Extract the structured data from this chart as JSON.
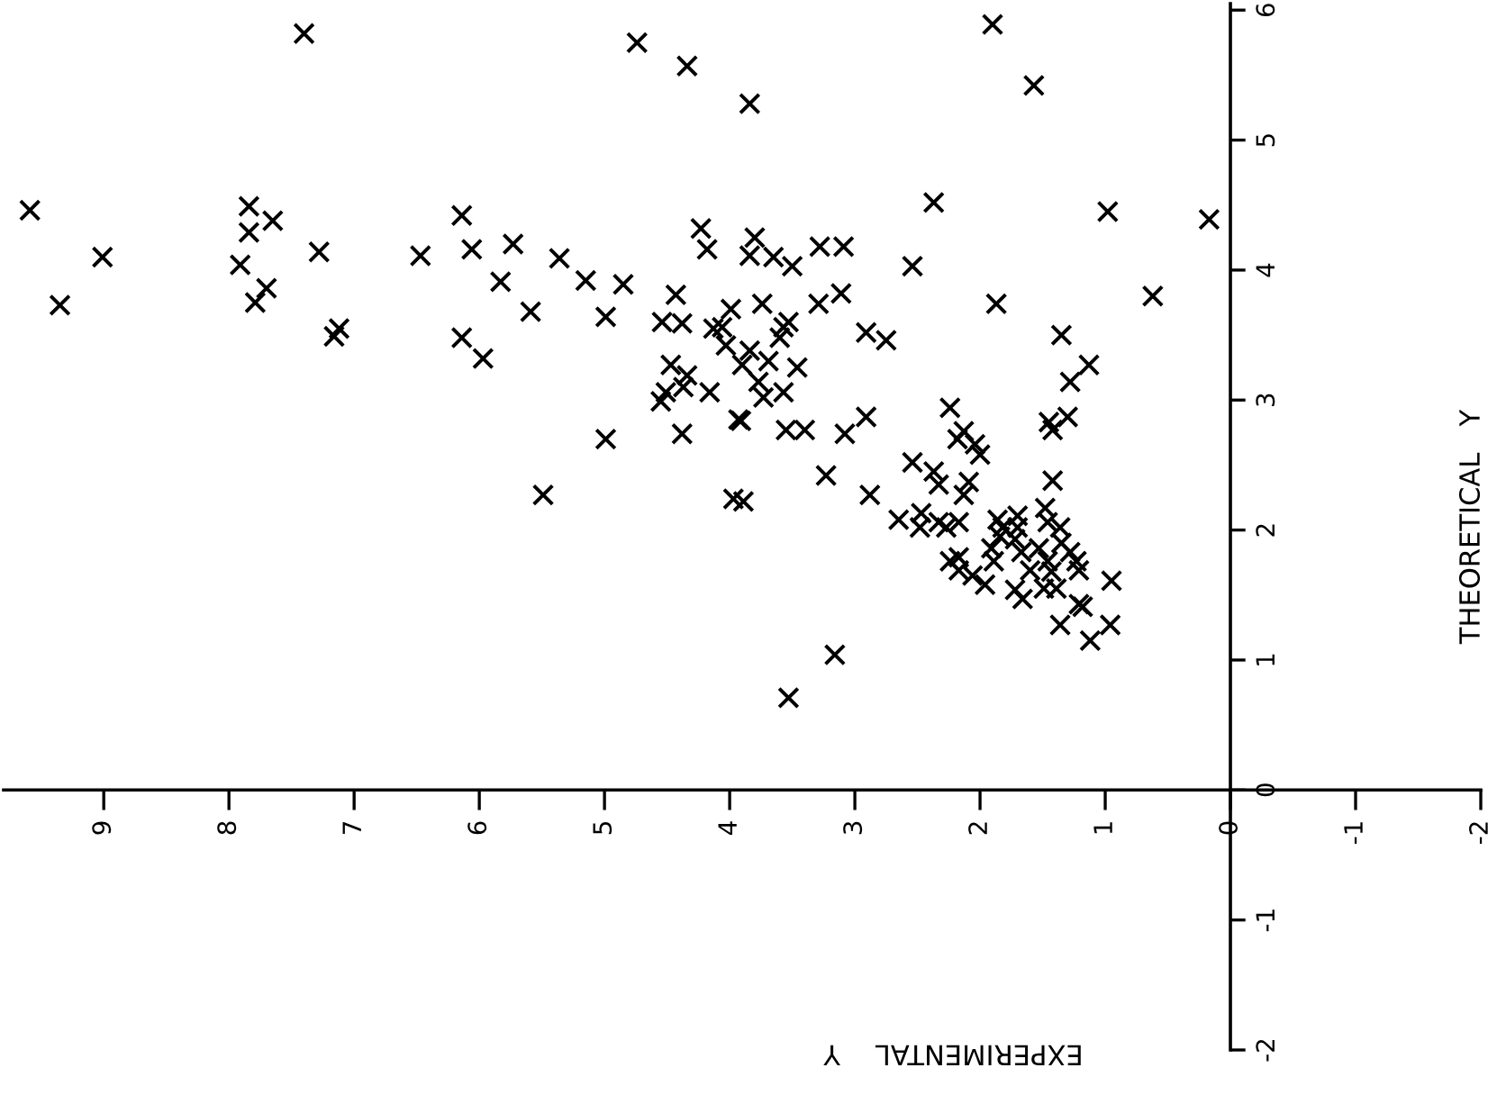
{
  "chart_data": {
    "type": "scatter",
    "xlabel": "EXPERIMENTAL    Y",
    "ylabel": "THEORETICAL   Y",
    "xlim": [
      9.8,
      -2.0
    ],
    "ylim": [
      -2.0,
      6.05
    ],
    "xticks": [
      9,
      8,
      7,
      6,
      5,
      4,
      3,
      2,
      1,
      0,
      -1,
      -2
    ],
    "yticks": [
      -2,
      -1,
      0,
      1,
      2,
      3,
      4,
      5,
      6
    ],
    "grid": false,
    "marker": "cross",
    "series": [
      {
        "color": "#000000",
        "x": [
          7.4,
          4.74,
          4.34,
          1.9,
          1.57,
          3.84,
          2.37,
          0.98,
          0.17,
          9.59,
          9.01,
          9.35,
          7.84,
          7.84,
          7.65,
          7.91,
          7.7,
          7.79,
          7.28,
          7.16,
          7.12,
          6.47,
          6.14,
          6.06,
          5.73,
          5.83,
          5.59,
          6.14,
          5.97,
          5.36,
          5.15,
          4.85,
          4.99,
          4.43,
          4.54,
          4.38,
          4.23,
          4.18,
          3.99,
          4.13,
          4.06,
          4.03,
          4.47,
          4.34,
          4.37,
          4.51,
          4.55,
          4.16,
          3.93,
          4.99,
          4.38,
          5.49,
          3.97,
          3.89,
          3.8,
          3.84,
          3.65,
          3.5,
          3.28,
          3.09,
          2.54,
          1.87,
          0.62,
          3.74,
          3.29,
          3.11,
          3.57,
          3.53,
          3.6,
          2.91,
          2.75,
          1.35,
          3.84,
          3.9,
          3.69,
          3.46,
          3.77,
          3.73,
          3.57,
          1.13,
          1.28,
          3.91,
          3.55,
          3.4,
          3.08,
          2.91,
          2.24,
          1.45,
          1.3,
          1.42,
          2.18,
          2.13,
          2.04,
          2.0,
          3.23,
          2.54,
          2.88,
          1.42,
          2.37,
          2.33,
          2.09,
          2.13,
          2.65,
          2.47,
          2.48,
          2.33,
          2.27,
          2.17,
          1.86,
          1.82,
          1.7,
          1.7,
          1.48,
          1.46,
          1.36,
          1.84,
          2.24,
          2.17,
          2.17,
          1.91,
          1.89,
          1.72,
          1.67,
          1.6,
          2.06,
          1.96,
          1.53,
          1.46,
          1.35,
          1.28,
          1.43,
          1.39,
          1.49,
          1.23,
          1.21,
          1.72,
          1.66,
          1.21,
          1.18,
          0.95,
          1.36,
          1.12,
          0.96,
          3.16,
          3.53
        ],
        "values": [
          5.82,
          5.75,
          5.57,
          5.89,
          5.42,
          5.28,
          4.52,
          4.45,
          4.39,
          4.46,
          4.1,
          3.73,
          4.49,
          4.29,
          4.38,
          4.04,
          3.86,
          3.75,
          4.14,
          3.49,
          3.55,
          4.11,
          4.42,
          4.16,
          4.2,
          3.91,
          3.68,
          3.48,
          3.32,
          4.09,
          3.92,
          3.89,
          3.64,
          3.81,
          3.6,
          3.59,
          4.32,
          4.16,
          3.7,
          3.55,
          3.56,
          3.42,
          3.27,
          3.19,
          3.1,
          3.06,
          2.99,
          3.06,
          2.85,
          2.7,
          2.74,
          2.27,
          2.24,
          2.22,
          4.25,
          4.11,
          4.1,
          4.03,
          4.18,
          4.18,
          4.03,
          3.74,
          3.8,
          3.74,
          3.74,
          3.82,
          3.56,
          3.6,
          3.48,
          3.52,
          3.46,
          3.5,
          3.38,
          3.27,
          3.3,
          3.25,
          3.14,
          3.02,
          3.06,
          3.27,
          3.14,
          2.84,
          2.77,
          2.77,
          2.74,
          2.87,
          2.94,
          2.83,
          2.87,
          2.77,
          2.7,
          2.76,
          2.66,
          2.58,
          2.42,
          2.52,
          2.27,
          2.38,
          2.45,
          2.35,
          2.37,
          2.27,
          2.08,
          2.13,
          2.02,
          2.06,
          2.02,
          2.06,
          2.08,
          2.02,
          2.11,
          2.02,
          2.17,
          2.06,
          2.02,
          1.95,
          1.76,
          1.79,
          1.69,
          1.86,
          1.76,
          1.93,
          1.83,
          1.69,
          1.65,
          1.58,
          1.86,
          1.76,
          1.9,
          1.83,
          1.68,
          1.55,
          1.55,
          1.76,
          1.69,
          1.54,
          1.47,
          1.43,
          1.41,
          1.61,
          1.27,
          1.15,
          1.27,
          1.04,
          0.71
        ]
      }
    ]
  }
}
